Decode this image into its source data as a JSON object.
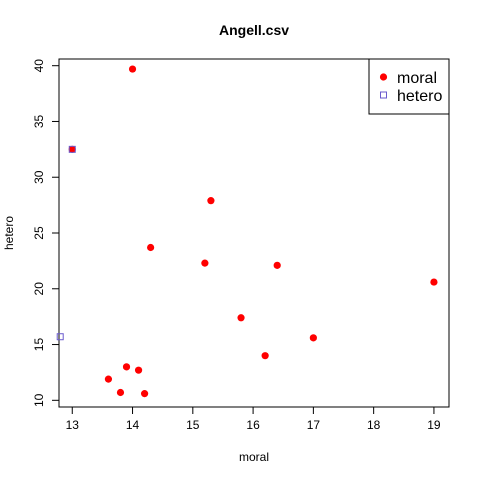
{
  "chart_data": {
    "type": "scatter",
    "title": "Angell.csv",
    "xlabel": "moral",
    "ylabel": "hetero",
    "xlim": [
      12.78,
      19.25
    ],
    "ylim": [
      9.4,
      40.6
    ],
    "xticks": [
      13,
      14,
      15,
      16,
      17,
      18,
      19
    ],
    "yticks": [
      10,
      15,
      20,
      25,
      30,
      35,
      40
    ],
    "grid": false,
    "legend_position": "top-right",
    "series": [
      {
        "name": "moral",
        "marker": "filled-circle",
        "color": "#ff0000",
        "points": [
          {
            "x": 13.0,
            "y": 32.5
          },
          {
            "x": 14.0,
            "y": 39.7
          },
          {
            "x": 15.3,
            "y": 27.9
          },
          {
            "x": 14.3,
            "y": 23.7
          },
          {
            "x": 15.2,
            "y": 22.3
          },
          {
            "x": 16.4,
            "y": 22.1
          },
          {
            "x": 19.0,
            "y": 20.6
          },
          {
            "x": 15.8,
            "y": 17.4
          },
          {
            "x": 17.0,
            "y": 15.6
          },
          {
            "x": 16.2,
            "y": 14.0
          },
          {
            "x": 13.9,
            "y": 13.0
          },
          {
            "x": 14.1,
            "y": 12.7
          },
          {
            "x": 13.6,
            "y": 11.9
          },
          {
            "x": 13.8,
            "y": 10.7
          },
          {
            "x": 14.2,
            "y": 10.6
          }
        ]
      },
      {
        "name": "hetero",
        "marker": "open-square",
        "color": "#6a5acd",
        "points": [
          {
            "x": 13.0,
            "y": 32.5
          },
          {
            "x": 12.8,
            "y": 15.7
          }
        ]
      }
    ]
  }
}
